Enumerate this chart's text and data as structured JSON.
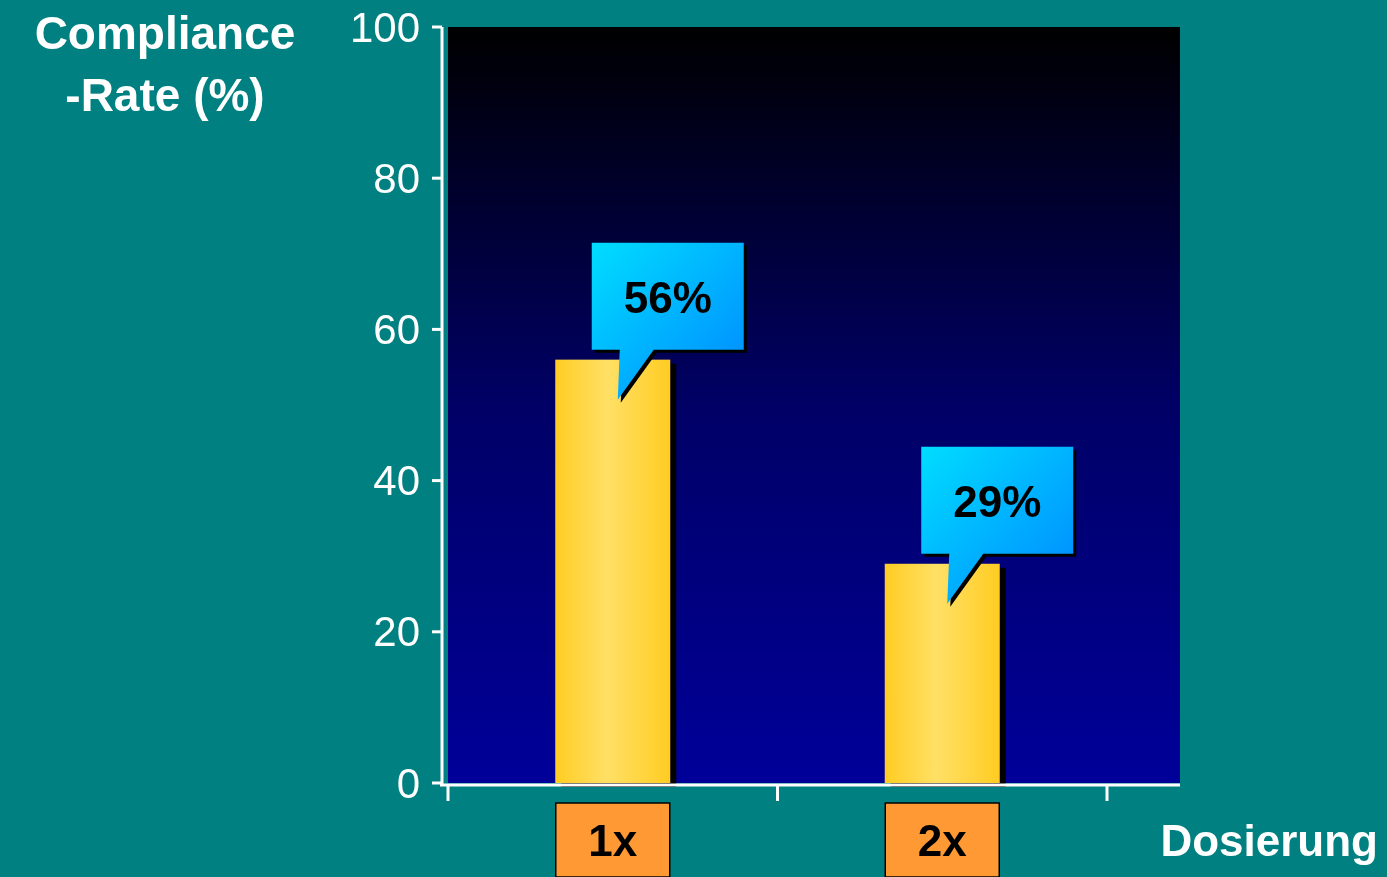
{
  "chart_data": {
    "type": "bar",
    "ylabel": "Compliance\n-Rate (%)",
    "xlabel": "Dosierung",
    "categories": [
      "1x",
      "2x"
    ],
    "values": [
      56,
      29
    ],
    "value_labels": [
      "56%",
      "29%"
    ],
    "color": "#ffe066",
    "ylim": [
      0,
      100
    ],
    "yticks": [
      0,
      20,
      40,
      60,
      80,
      100
    ],
    "grid": false
  }
}
